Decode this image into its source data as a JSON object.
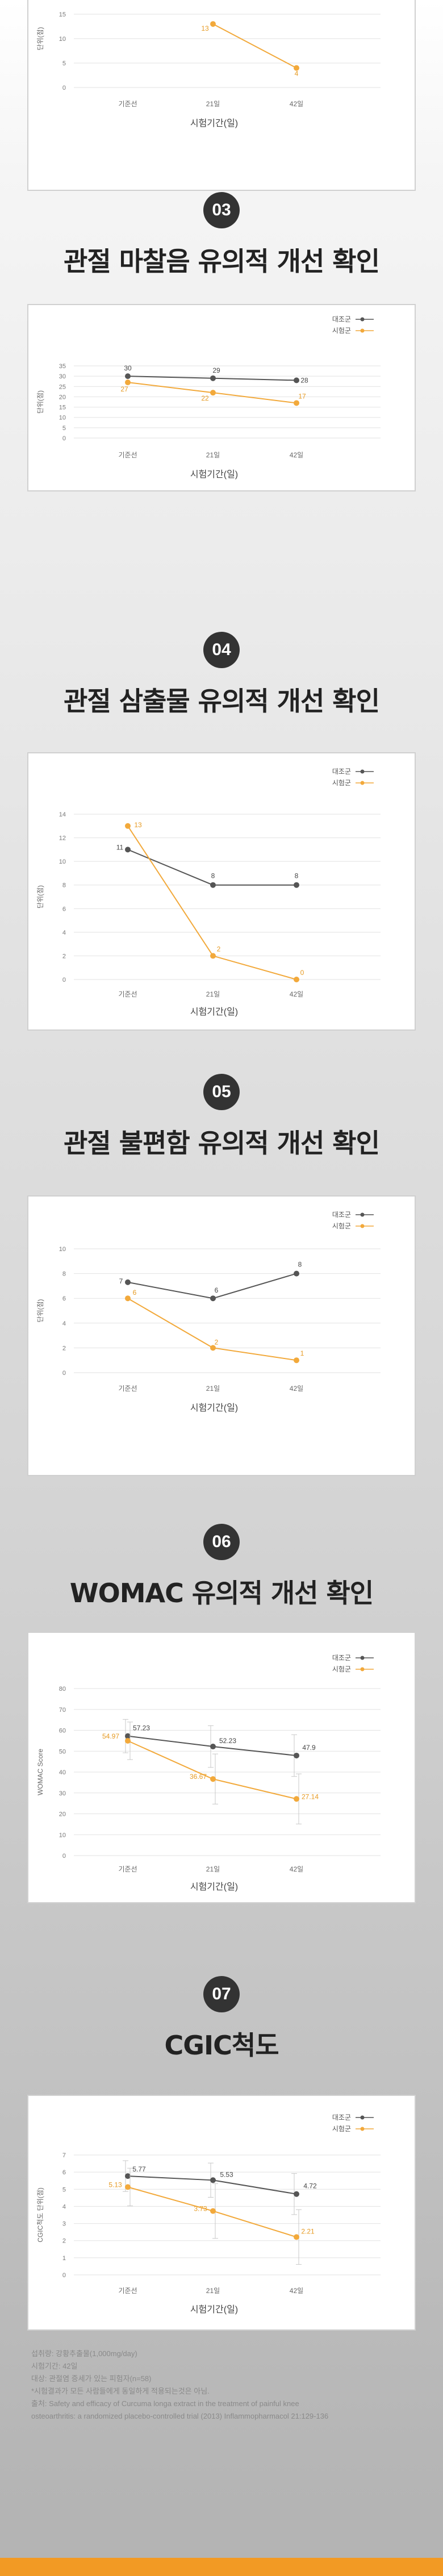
{
  "colors": {
    "control": "#555555",
    "test": "#f2a93b",
    "grid": "#e2e2e2",
    "axis": "#999999"
  },
  "legend": {
    "control": "대조군",
    "test": "시험군"
  },
  "chart_data": [
    {
      "id": "c1",
      "type": "line",
      "x": [
        "기준선",
        "21일",
        "42일"
      ],
      "ylim": [
        0,
        20
      ],
      "yticks": [
        0,
        5,
        10,
        15
      ],
      "xlabel": "시험기간(일)",
      "ylabel": "단위(점)",
      "series": [
        {
          "key": "test",
          "values": [
            null,
            13,
            4
          ],
          "labels": [
            "",
            "13",
            "4"
          ]
        }
      ]
    },
    {
      "id": "c3",
      "type": "line",
      "x": [
        "기준선",
        "21일",
        "42일"
      ],
      "ylim": [
        0,
        35
      ],
      "yticks": [
        0,
        5,
        10,
        15,
        20,
        25,
        30,
        35
      ],
      "xlabel": "시험기간(일)",
      "ylabel": "단위(점)",
      "series": [
        {
          "key": "control",
          "name": "대조군",
          "values": [
            30,
            29,
            28
          ],
          "labels": [
            "30",
            "29",
            "28"
          ]
        },
        {
          "key": "test",
          "name": "시험군",
          "values": [
            27,
            22,
            17
          ],
          "labels": [
            "27",
            "22",
            "17"
          ]
        }
      ]
    },
    {
      "id": "c4",
      "type": "line",
      "x": [
        "기준선",
        "21일",
        "42일"
      ],
      "ylim": [
        0,
        14
      ],
      "yticks": [
        0,
        2,
        4,
        6,
        8,
        10,
        12,
        14
      ],
      "xlabel": "시험기간(일)",
      "ylabel": "단위(점)",
      "series": [
        {
          "key": "control",
          "name": "대조군",
          "values": [
            11,
            8,
            8
          ],
          "labels": [
            "11",
            "8",
            "8"
          ]
        },
        {
          "key": "test",
          "name": "시험군",
          "values": [
            13,
            2,
            0
          ],
          "labels": [
            "13",
            "2",
            "0"
          ]
        }
      ]
    },
    {
      "id": "c5",
      "type": "line",
      "x": [
        "기준선",
        "21일",
        "42일"
      ],
      "ylim": [
        0,
        10
      ],
      "yticks": [
        0,
        2,
        4,
        6,
        8,
        10
      ],
      "xlabel": "시험기간(일)",
      "ylabel": "단위(점)",
      "series": [
        {
          "key": "control",
          "name": "대조군",
          "values": [
            7.3,
            6,
            8
          ],
          "labels": [
            "7",
            "6",
            "8"
          ]
        },
        {
          "key": "test",
          "name": "시험군",
          "values": [
            6,
            2,
            1
          ],
          "labels": [
            "6",
            "2",
            "1"
          ]
        }
      ]
    },
    {
      "id": "c6",
      "type": "line",
      "x": [
        "기준선",
        "21일",
        "42일"
      ],
      "ylim": [
        0,
        80
      ],
      "yticks": [
        0,
        10,
        20,
        30,
        40,
        50,
        60,
        70,
        80
      ],
      "xlabel": "시험기간(일)",
      "ylabel": "WOMAC Score",
      "series": [
        {
          "key": "control",
          "name": "대조군",
          "values": [
            57.23,
            52.23,
            47.9
          ],
          "labels": [
            "57.23",
            "52.23",
            "47.9"
          ],
          "err": [
            8,
            10,
            10
          ]
        },
        {
          "key": "test",
          "name": "시험군",
          "values": [
            54.97,
            36.67,
            27.14
          ],
          "labels": [
            "54.97",
            "36.67",
            "27.14"
          ],
          "err": [
            9,
            12,
            12
          ]
        }
      ]
    },
    {
      "id": "c7",
      "type": "line",
      "x": [
        "기준선",
        "21일",
        "42일"
      ],
      "ylim": [
        0,
        7
      ],
      "yticks": [
        0,
        1,
        2,
        3,
        4,
        5,
        6,
        7
      ],
      "xlabel": "시험기간(일)",
      "ylabel": "CGIC척도 단위(점)",
      "series": [
        {
          "key": "control",
          "name": "대조군",
          "values": [
            5.77,
            5.53,
            4.72
          ],
          "labels": [
            "5.77",
            "5.53",
            "4.72"
          ],
          "err": [
            0.9,
            1.0,
            1.2
          ]
        },
        {
          "key": "test",
          "name": "시험군",
          "values": [
            5.13,
            3.73,
            2.21
          ],
          "labels": [
            "5.13",
            "3.73",
            "2.21"
          ],
          "err": [
            1.1,
            1.6,
            1.6
          ]
        }
      ]
    }
  ],
  "sections": [
    {
      "num": "03",
      "title": "관절 마찰음 유의적 개선 확인"
    },
    {
      "num": "04",
      "title": "관절 삼출물 유의적 개선 확인"
    },
    {
      "num": "05",
      "title": "관절 불편함 유의적 개선 확인"
    },
    {
      "num": "06",
      "title": "WOMAC 유의적 개선 확인"
    },
    {
      "num": "07",
      "title": "CGIC척도"
    }
  ],
  "footnotes": [
    "섭취량: 강황추출물(1,000mg/day)",
    "시험기간: 42일",
    "대상: 관절염 증세가 있는 피험자(n=58)",
    "*시험결과가 모든 사람들에게 동일하게 적용되는것은 아님.",
    "출처: Safety and efficacy of Curcuma longa extract in the treatment of painful knee",
    "osteoarthritis: a randomized placebo-controlled trial (2013) Inflammopharmacol 21:129-136"
  ]
}
